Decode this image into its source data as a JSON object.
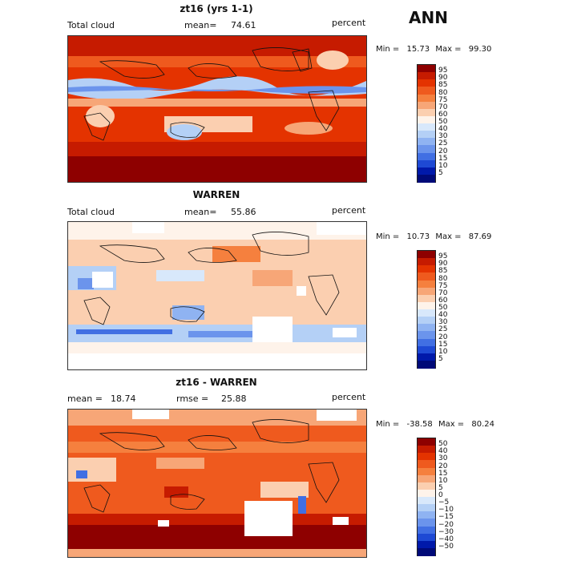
{
  "season": "ANN",
  "panels": [
    {
      "title": "zt16 (yrs 1-1)",
      "left_label": "Total cloud",
      "mean_label": "mean=",
      "mean_value": "74.61",
      "units": "percent",
      "min_label": "Min =",
      "min_value": "15.73",
      "max_label": "Max =",
      "max_value": "99.30",
      "colorbar": {
        "labels": [
          "95",
          "90",
          "85",
          "80",
          "75",
          "70",
          "60",
          "50",
          "40",
          "30",
          "25",
          "20",
          "15",
          "10",
          "5"
        ],
        "colors": [
          "#8e0000",
          "#c61b00",
          "#e43300",
          "#ef5a1e",
          "#f5803e",
          "#f7a677",
          "#fbcfb0",
          "#fef3ea",
          "#d8e8fb",
          "#b4d0f6",
          "#8fb3f2",
          "#6b94ec",
          "#416fe3",
          "#1e49d4",
          "#0019aa",
          "#000a78"
        ]
      }
    },
    {
      "title": "WARREN",
      "left_label": "Total cloud",
      "mean_label": "mean=",
      "mean_value": "55.86",
      "units": "percent",
      "min_label": "Min =",
      "min_value": "10.73",
      "max_label": "Max =",
      "max_value": "87.69",
      "colorbar": {
        "labels": [
          "95",
          "90",
          "85",
          "80",
          "75",
          "70",
          "60",
          "50",
          "40",
          "30",
          "25",
          "20",
          "15",
          "10",
          "5"
        ],
        "colors": [
          "#8e0000",
          "#c61b00",
          "#e43300",
          "#ef5a1e",
          "#f5803e",
          "#f7a677",
          "#fbcfb0",
          "#fef3ea",
          "#d8e8fb",
          "#b4d0f6",
          "#8fb3f2",
          "#6b94ec",
          "#416fe3",
          "#1e49d4",
          "#0019aa",
          "#000a78"
        ]
      }
    },
    {
      "title": "zt16 - WARREN",
      "left_label": "mean =",
      "left_value": "18.74",
      "mean_label": "rmse =",
      "mean_value": "25.88",
      "units": "percent",
      "min_label": "Min =",
      "min_value": "-38.58",
      "max_label": "Max =",
      "max_value": "80.24",
      "colorbar": {
        "labels": [
          "50",
          "40",
          "30",
          "20",
          "15",
          "10",
          "5",
          "0",
          "−5",
          "−10",
          "−15",
          "−20",
          "−30",
          "−40",
          "−50"
        ],
        "colors": [
          "#8e0000",
          "#c61b00",
          "#e43300",
          "#ef5a1e",
          "#f5803e",
          "#f7a677",
          "#fbcfb0",
          "#fef3ea",
          "#d8e8fb",
          "#b4d0f6",
          "#8fb3f2",
          "#6b94ec",
          "#416fe3",
          "#1e49d4",
          "#0019aa",
          "#000a78"
        ]
      }
    }
  ]
}
